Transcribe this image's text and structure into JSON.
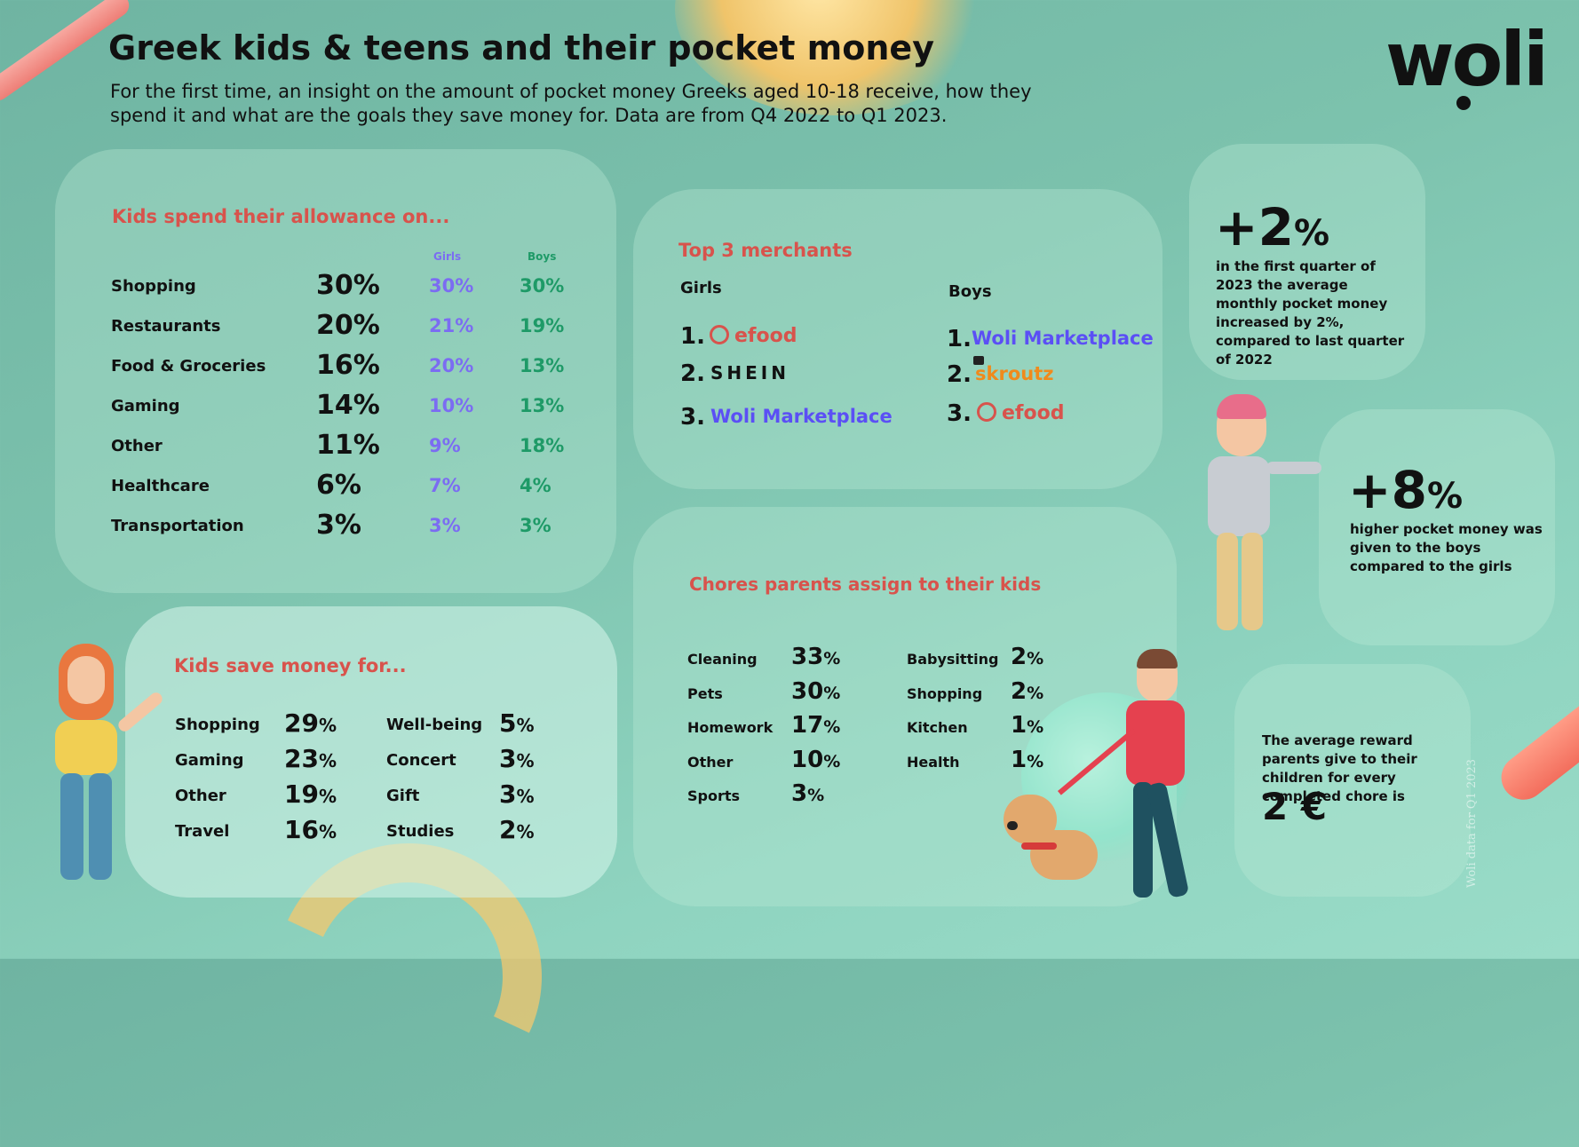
{
  "header": {
    "title": "Greek kids & teens and their pocket money",
    "subtitle": "For the first time, an insight on the amount of pocket money Greeks aged 10-18 receive, how they spend it and what are the goals they save money for. Data are from Q4 2022 to Q1 2023.",
    "logo": "woli"
  },
  "spend": {
    "heading": "Kids spend their allowance on...",
    "col_girls": "Girls",
    "col_boys": "Boys",
    "rows": [
      {
        "label": "Shopping",
        "total": "30%",
        "girls": "30%",
        "boys": "30%"
      },
      {
        "label": "Restaurants",
        "total": "20%",
        "girls": "21%",
        "boys": "19%"
      },
      {
        "label": "Food & Groceries",
        "total": "16%",
        "girls": "20%",
        "boys": "13%"
      },
      {
        "label": "Gaming",
        "total": "14%",
        "girls": "10%",
        "boys": "13%"
      },
      {
        "label": "Other",
        "total": "11%",
        "girls": "9%",
        "boys": "18%"
      },
      {
        "label": "Healthcare",
        "total": "6%",
        "girls": "7%",
        "boys": "4%"
      },
      {
        "label": "Transportation",
        "total": "3%",
        "girls": "3%",
        "boys": "3%"
      }
    ]
  },
  "merchants": {
    "heading": "Top 3 merchants",
    "girls_label": "Girls",
    "boys_label": "Boys",
    "girls": [
      {
        "rank": "1.",
        "name": "efood"
      },
      {
        "rank": "2.",
        "name": "SHEIN"
      },
      {
        "rank": "3.",
        "name": "Woli Marketplace"
      }
    ],
    "boys": [
      {
        "rank": "1.",
        "name": "Woli Marketplace"
      },
      {
        "rank": "2.",
        "name": "skroutz"
      },
      {
        "rank": "3.",
        "name": "efood"
      }
    ]
  },
  "stats": {
    "q1_value": "+2",
    "q1_unit": "%",
    "q1_text": "in the first quarter of 2023 the average monthly pocket money increased by 2%, compared to last quarter of 2022",
    "boys_value": "+8",
    "boys_unit": "%",
    "boys_text": "higher pocket money was given to the boys compared to the girls",
    "reward_text": "The average reward parents give to their children for every completed chore is",
    "reward_value": "2 €"
  },
  "save": {
    "heading": "Kids save money for...",
    "left": [
      {
        "label": "Shopping",
        "value": "29",
        "unit": "%"
      },
      {
        "label": "Gaming",
        "value": "23",
        "unit": "%"
      },
      {
        "label": "Other",
        "value": "19",
        "unit": "%"
      },
      {
        "label": "Travel",
        "value": "16",
        "unit": "%"
      }
    ],
    "right": [
      {
        "label": "Well-being",
        "value": "5",
        "unit": "%"
      },
      {
        "label": "Concert",
        "value": "3",
        "unit": "%"
      },
      {
        "label": "Gift",
        "value": "3",
        "unit": "%"
      },
      {
        "label": "Studies",
        "value": "2",
        "unit": "%"
      }
    ]
  },
  "chores": {
    "heading": "Chores parents assign to their kids",
    "left": [
      {
        "label": "Cleaning",
        "value": "33",
        "unit": "%"
      },
      {
        "label": "Pets",
        "value": "30",
        "unit": "%"
      },
      {
        "label": "Homework",
        "value": "17",
        "unit": "%"
      },
      {
        "label": "Other",
        "value": "10",
        "unit": "%"
      },
      {
        "label": "Sports",
        "value": "3",
        "unit": "%"
      }
    ],
    "right": [
      {
        "label": "Babysitting",
        "value": "2",
        "unit": "%"
      },
      {
        "label": "Shopping",
        "value": "2",
        "unit": "%"
      },
      {
        "label": "Kitchen",
        "value": "1",
        "unit": "%"
      },
      {
        "label": "Health",
        "value": "1",
        "unit": "%"
      }
    ]
  },
  "footer": {
    "source": "Woli data for Q1 2023"
  },
  "colors": {
    "accent_red": "#d8534c",
    "girls": "#7b6cf2",
    "boys": "#1e9a67",
    "woli_purple": "#5b4ff5",
    "skroutz_orange": "#f08a1c"
  }
}
